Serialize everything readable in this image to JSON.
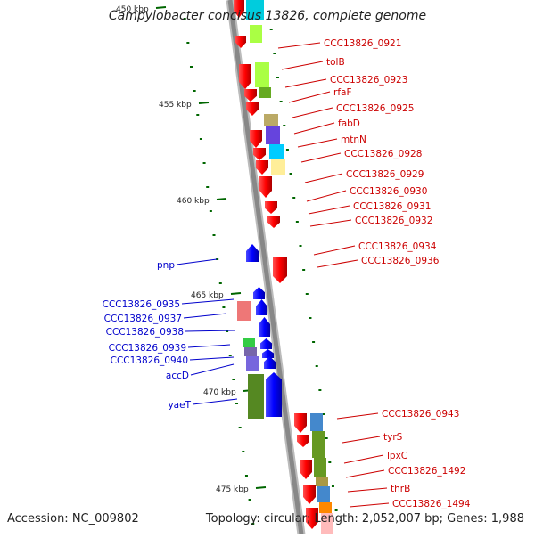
{
  "title": "Campylobacter concisus 13826, complete genome",
  "accession": "Accession: NC_009802",
  "topology": "Topology: circular; Length: 2,052,007 bp; Genes: 1,988",
  "colors": {
    "forward": "#ff0000",
    "reverse": "#0000ff",
    "label_forward": "#cc0000",
    "label_reverse": "#0000cc",
    "backbone": "#888888",
    "tick": "#006600"
  },
  "kbp_labels": [
    "450 kbp",
    "455 kbp",
    "460 kbp",
    "465 kbp",
    "470 kbp",
    "475 kbp"
  ],
  "right_labels": [
    "CCC13826_0921",
    "tolB",
    "CCC13826_0923",
    "rfaF",
    "CCC13826_0925",
    "fabD",
    "mtnN",
    "CCC13826_0928",
    "CCC13826_0929",
    "CCC13826_0930",
    "CCC13826_0931",
    "CCC13826_0932",
    "CCC13826_0934",
    "CCC13826_0936",
    "CCC13826_0943",
    "tyrS",
    "lpxC",
    "CCC13826_1492",
    "thrB",
    "CCC13826_1494"
  ],
  "left_labels": [
    "pnp",
    "CCC13826_0935",
    "CCC13826_0937",
    "CCC13826_0938",
    "CCC13826_0939",
    "CCC13826_0940",
    "accD",
    "yaeT"
  ]
}
